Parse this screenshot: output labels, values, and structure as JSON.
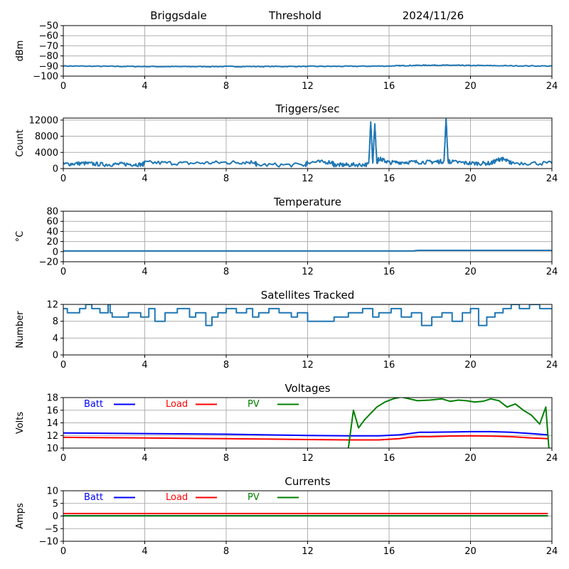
{
  "header": {
    "station": "Briggsdale",
    "mode": "Threshold",
    "date": "2024/11/26"
  },
  "colors": {
    "default_line": "#1f77b4",
    "batt": "#0000ff",
    "load": "#ff0000",
    "pv": "#008000",
    "grid": "#b0b0b0"
  },
  "chart_data": [
    {
      "id": "threshold",
      "type": "line",
      "title": "",
      "xlabel": "",
      "ylabel": "dBm",
      "xlim": [
        0,
        24
      ],
      "ylim": [
        -100,
        -50
      ],
      "xticks": [
        0,
        4,
        8,
        12,
        16,
        20,
        24
      ],
      "yticks": [
        -100,
        -90,
        -80,
        -70,
        -60,
        -50
      ],
      "grid": true,
      "series": [
        {
          "color": "default_line",
          "noise": 0.4,
          "x": [
            0,
            2,
            4,
            6,
            8,
            10,
            12,
            14,
            16,
            17,
            18,
            19,
            20,
            22,
            24
          ],
          "y": [
            -90,
            -90.3,
            -90.5,
            -90.6,
            -90.5,
            -90.5,
            -90.4,
            -90.3,
            -90,
            -89.5,
            -89.2,
            -89.3,
            -89.5,
            -89.8,
            -90
          ]
        }
      ]
    },
    {
      "id": "triggers",
      "type": "line",
      "title": "Triggers/sec",
      "xlabel": "",
      "ylabel": "Count",
      "xlim": [
        0,
        24
      ],
      "ylim": [
        0,
        12500
      ],
      "xticks": [
        0,
        4,
        8,
        12,
        16,
        20,
        24
      ],
      "yticks": [
        0,
        4000,
        8000,
        12000
      ],
      "grid": true,
      "series": [
        {
          "color": "default_line",
          "noise": 500,
          "x": [
            0,
            1,
            2,
            3,
            3.9,
            4,
            6,
            8,
            9.4,
            9.5,
            11.9,
            12,
            13.2,
            13.3,
            14,
            15,
            15.1,
            15.2,
            15.3,
            15.4,
            15.5,
            16,
            17,
            18,
            18.7,
            18.8,
            18.9,
            19,
            20,
            21,
            21.5,
            22,
            24
          ],
          "y": [
            1100,
            1300,
            1000,
            1100,
            1000,
            1500,
            1300,
            1500,
            1600,
            900,
            900,
            1600,
            1600,
            900,
            900,
            1000,
            11500,
            1200,
            11200,
            1500,
            2500,
            1500,
            1600,
            1600,
            1800,
            12500,
            1800,
            1700,
            1300,
            1300,
            2500,
            1400,
            1300
          ]
        }
      ]
    },
    {
      "id": "temperature",
      "type": "line",
      "title": "Temperature",
      "xlabel": "",
      "ylabel": "°C",
      "xlim": [
        0,
        24
      ],
      "ylim": [
        -20,
        80
      ],
      "xticks": [
        0,
        4,
        8,
        12,
        16,
        20,
        24
      ],
      "yticks": [
        -20,
        0,
        20,
        40,
        60,
        80
      ],
      "grid": true,
      "series": [
        {
          "color": "default_line",
          "noise": 0,
          "x": [
            0,
            17.2,
            17.4,
            24
          ],
          "y": [
            1.5,
            1.5,
            2.5,
            2.5
          ]
        }
      ]
    },
    {
      "id": "satellites",
      "type": "line",
      "title": "Satellites Tracked",
      "xlabel": "",
      "ylabel": "Number",
      "xlim": [
        0,
        24
      ],
      "ylim": [
        0,
        12
      ],
      "xticks": [
        0,
        4,
        8,
        12,
        16,
        20,
        24
      ],
      "yticks": [
        0,
        4,
        8,
        12
      ],
      "grid": true,
      "series": [
        {
          "color": "default_line",
          "step": true,
          "noise": 0,
          "x": [
            0,
            0.2,
            0.8,
            1.1,
            1.4,
            1.8,
            2.2,
            2.3,
            2.4,
            3.2,
            3.8,
            4.2,
            4.5,
            5.0,
            5.6,
            6.2,
            6.5,
            7.0,
            7.3,
            7.6,
            8.0,
            8.5,
            9.0,
            9.3,
            9.6,
            10.1,
            10.6,
            11.2,
            11.5,
            12.0,
            12.6,
            13.3,
            14.0,
            14.7,
            15.2,
            15.5,
            16.1,
            16.6,
            17.1,
            17.6,
            18.1,
            18.6,
            19.1,
            19.6,
            20.0,
            20.4,
            20.8,
            21.2,
            21.6,
            22.0,
            22.4,
            22.9,
            23.4,
            24
          ],
          "y": [
            11,
            10,
            11,
            12,
            11,
            10,
            12,
            10,
            9,
            10,
            9,
            11,
            8,
            10,
            11,
            9,
            10,
            7,
            9,
            10,
            11,
            10,
            11,
            9,
            10,
            11,
            10,
            9,
            10,
            8,
            8,
            9,
            10,
            11,
            9,
            10,
            11,
            9,
            10,
            7,
            9,
            10,
            8,
            10,
            11,
            7,
            9,
            10,
            11,
            12,
            11,
            12,
            11,
            11
          ]
        }
      ]
    },
    {
      "id": "voltages",
      "type": "line",
      "title": "Voltages",
      "xlabel": "",
      "ylabel": "Volts",
      "xlim": [
        0,
        24
      ],
      "ylim": [
        10,
        18
      ],
      "xticks": [
        0,
        4,
        8,
        12,
        16,
        20,
        24
      ],
      "yticks": [
        10,
        12,
        14,
        16,
        18
      ],
      "grid": true,
      "legend": "top-left",
      "series": [
        {
          "name": "Batt",
          "color": "batt",
          "noise": 0,
          "x": [
            0,
            4,
            8,
            12,
            14,
            15.5,
            16.5,
            17,
            17.5,
            18,
            19,
            20,
            21,
            22,
            23,
            23.8
          ],
          "y": [
            12.4,
            12.3,
            12.2,
            12.0,
            11.95,
            11.95,
            12.1,
            12.3,
            12.5,
            12.5,
            12.55,
            12.6,
            12.6,
            12.5,
            12.3,
            12.1
          ]
        },
        {
          "name": "Load",
          "color": "load",
          "noise": 0,
          "x": [
            0,
            4,
            8,
            12,
            14,
            15.5,
            16.5,
            17,
            17.5,
            18,
            19,
            20,
            21,
            22,
            23,
            23.8
          ],
          "y": [
            11.7,
            11.6,
            11.5,
            11.35,
            11.3,
            11.3,
            11.5,
            11.7,
            11.8,
            11.8,
            11.9,
            11.95,
            11.9,
            11.8,
            11.6,
            11.5
          ]
        },
        {
          "name": "PV",
          "color": "pv",
          "noise": 0,
          "x": [
            14.0,
            14.25,
            14.5,
            14.8,
            15.1,
            15.4,
            15.8,
            16.2,
            16.6,
            17.0,
            17.4,
            18.0,
            18.6,
            19.0,
            19.4,
            19.8,
            20.2,
            20.6,
            21.0,
            21.4,
            21.8,
            22.2,
            22.6,
            23.0,
            23.4,
            23.7,
            23.85
          ],
          "y": [
            10,
            16.0,
            13.2,
            14.5,
            15.5,
            16.5,
            17.3,
            17.8,
            18.1,
            17.8,
            17.5,
            17.6,
            17.8,
            17.4,
            17.6,
            17.5,
            17.3,
            17.4,
            17.8,
            17.5,
            16.5,
            17.0,
            16.0,
            15.2,
            13.8,
            16.5,
            10
          ]
        }
      ]
    },
    {
      "id": "currents",
      "type": "line",
      "title": "Currents",
      "xlabel": "",
      "ylabel": "Amps",
      "xlim": [
        0,
        24
      ],
      "ylim": [
        -10,
        10
      ],
      "xticks": [
        0,
        4,
        8,
        12,
        16,
        20,
        24
      ],
      "yticks": [
        -10,
        -5,
        0,
        5,
        10
      ],
      "grid": true,
      "legend": "top-left",
      "series": [
        {
          "name": "Batt",
          "color": "batt",
          "noise": 0,
          "x": [
            0,
            23.8
          ],
          "y": [
            0.1,
            0.1
          ]
        },
        {
          "name": "Load",
          "color": "load",
          "noise": 0,
          "x": [
            0,
            23.8
          ],
          "y": [
            1.0,
            1.0
          ]
        },
        {
          "name": "PV",
          "color": "pv",
          "noise": 0,
          "x": [
            0,
            23.8
          ],
          "y": [
            0.05,
            0.05
          ]
        }
      ]
    }
  ]
}
